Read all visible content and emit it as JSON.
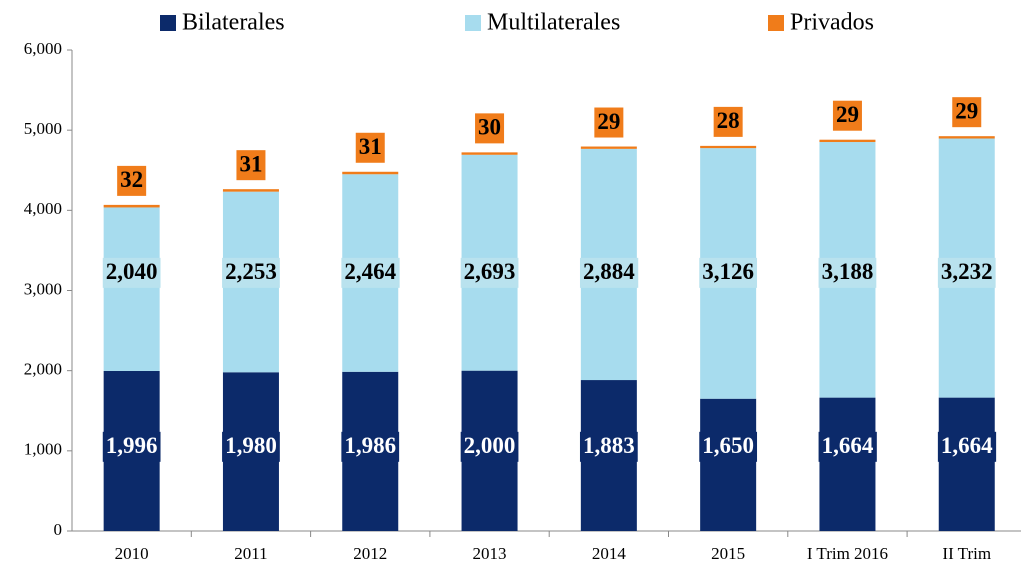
{
  "chart_data": {
    "type": "stacked_bar",
    "categories": [
      "2010",
      "2011",
      "2012",
      "2013",
      "2014",
      "2015",
      "I Trim 2016",
      "II Trim"
    ],
    "series": [
      {
        "name": "Bilaterales",
        "color": "#0c2a6a",
        "label_color": "#ffffff",
        "values": [
          1996,
          1980,
          1986,
          2000,
          1883,
          1650,
          1664,
          1664
        ],
        "value_labels": [
          "1,996",
          "1,980",
          "1,986",
          "2,000",
          "1,883",
          "1,650",
          "1,664",
          "1,664"
        ]
      },
      {
        "name": "Multilaterales",
        "color": "#a7dcee",
        "label_color": "#000000",
        "values": [
          2040,
          2253,
          2464,
          2693,
          2884,
          3126,
          3188,
          3232
        ],
        "value_labels": [
          "2,040",
          "2,253",
          "2,464",
          "2,693",
          "2,884",
          "3,126",
          "3,188",
          "3,232"
        ]
      },
      {
        "name": "Privados",
        "color": "#f07c1a",
        "label_color": "#000000",
        "values": [
          32,
          31,
          31,
          30,
          29,
          28,
          29,
          29
        ]
      }
    ],
    "ylim": [
      0,
      6000
    ],
    "yticks": [
      0,
      {
        "value": 1000,
        "label": "1,000"
      },
      {
        "value": 2000,
        "label": "2,000"
      },
      {
        "value": 3000,
        "label": "3,000"
      },
      {
        "value": 4000,
        "label": "4,000"
      },
      {
        "value": 5000,
        "label": "5,000"
      },
      {
        "value": 6000,
        "label": "6,000"
      }
    ],
    "legend": "top"
  }
}
